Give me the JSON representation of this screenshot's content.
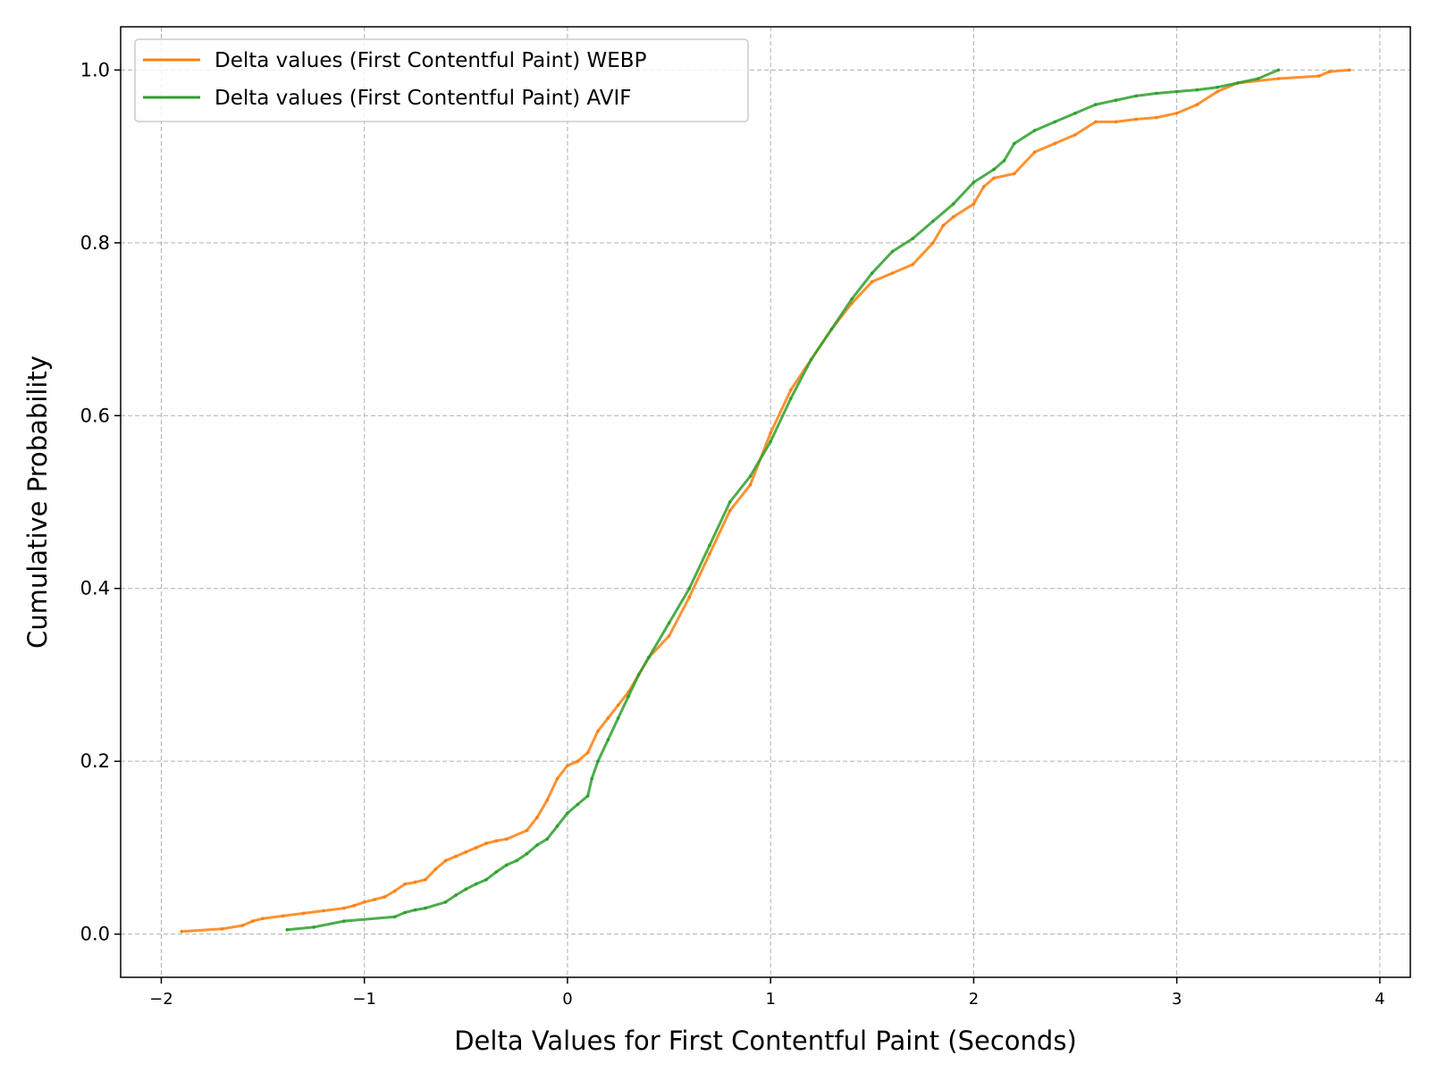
{
  "chart_data": {
    "type": "line",
    "title": "",
    "xlabel": "Delta Values for First Contentful Paint (Seconds)",
    "ylabel": "Cumulative Probability",
    "xlim": [
      -2.2,
      4.15
    ],
    "ylim": [
      -0.05,
      1.05
    ],
    "xticks": [
      -2,
      -1,
      0,
      1,
      2,
      3,
      4
    ],
    "xtick_labels": [
      "−2",
      "−1",
      "0",
      "1",
      "2",
      "3",
      "4"
    ],
    "yticks": [
      0.0,
      0.2,
      0.4,
      0.6,
      0.8,
      1.0
    ],
    "ytick_labels": [
      "0.0",
      "0.2",
      "0.4",
      "0.6",
      "0.8",
      "1.0"
    ],
    "grid": true,
    "legend_position": "top-left",
    "series": [
      {
        "name": "Delta values (First Contentful Paint) WEBP",
        "color": "#ff7f0e",
        "x": [
          -1.9,
          -1.7,
          -1.6,
          -1.55,
          -1.5,
          -1.4,
          -1.3,
          -1.2,
          -1.1,
          -1.05,
          -1.0,
          -0.95,
          -0.9,
          -0.85,
          -0.8,
          -0.75,
          -0.7,
          -0.65,
          -0.6,
          -0.55,
          -0.5,
          -0.45,
          -0.4,
          -0.35,
          -0.3,
          -0.2,
          -0.15,
          -0.1,
          -0.05,
          0.0,
          0.05,
          0.1,
          0.15,
          0.2,
          0.25,
          0.3,
          0.35,
          0.4,
          0.5,
          0.6,
          0.7,
          0.8,
          0.9,
          1.0,
          1.1,
          1.2,
          1.3,
          1.4,
          1.5,
          1.6,
          1.7,
          1.8,
          1.85,
          1.9,
          2.0,
          2.05,
          2.1,
          2.2,
          2.3,
          2.4,
          2.5,
          2.6,
          2.7,
          2.8,
          2.9,
          3.0,
          3.1,
          3.2,
          3.3,
          3.5,
          3.7,
          3.75,
          3.85
        ],
        "y": [
          0.003,
          0.006,
          0.01,
          0.015,
          0.018,
          0.021,
          0.024,
          0.027,
          0.03,
          0.033,
          0.037,
          0.04,
          0.043,
          0.05,
          0.058,
          0.06,
          0.063,
          0.075,
          0.085,
          0.09,
          0.095,
          0.1,
          0.105,
          0.108,
          0.11,
          0.12,
          0.135,
          0.155,
          0.18,
          0.195,
          0.2,
          0.21,
          0.235,
          0.25,
          0.265,
          0.28,
          0.3,
          0.32,
          0.345,
          0.39,
          0.44,
          0.49,
          0.52,
          0.58,
          0.63,
          0.665,
          0.7,
          0.73,
          0.755,
          0.765,
          0.775,
          0.8,
          0.82,
          0.83,
          0.845,
          0.865,
          0.875,
          0.88,
          0.905,
          0.915,
          0.925,
          0.94,
          0.94,
          0.943,
          0.945,
          0.95,
          0.96,
          0.975,
          0.985,
          0.99,
          0.993,
          0.998,
          1.0
        ]
      },
      {
        "name": "Delta values (First Contentful Paint) AVIF",
        "color": "#2ca02c",
        "x": [
          -1.38,
          -1.25,
          -1.1,
          -0.85,
          -0.8,
          -0.75,
          -0.7,
          -0.6,
          -0.55,
          -0.5,
          -0.45,
          -0.4,
          -0.35,
          -0.3,
          -0.25,
          -0.2,
          -0.15,
          -0.1,
          -0.05,
          0.0,
          0.05,
          0.1,
          0.12,
          0.15,
          0.2,
          0.25,
          0.3,
          0.35,
          0.4,
          0.5,
          0.6,
          0.7,
          0.8,
          0.9,
          1.0,
          1.1,
          1.2,
          1.3,
          1.4,
          1.5,
          1.6,
          1.7,
          1.8,
          1.9,
          2.0,
          2.1,
          2.15,
          2.2,
          2.3,
          2.4,
          2.5,
          2.6,
          2.7,
          2.8,
          2.9,
          3.0,
          3.1,
          3.2,
          3.3,
          3.4,
          3.5
        ],
        "y": [
          0.005,
          0.008,
          0.015,
          0.02,
          0.025,
          0.028,
          0.03,
          0.037,
          0.045,
          0.052,
          0.058,
          0.063,
          0.072,
          0.08,
          0.085,
          0.093,
          0.103,
          0.11,
          0.125,
          0.14,
          0.15,
          0.16,
          0.18,
          0.2,
          0.225,
          0.25,
          0.275,
          0.3,
          0.32,
          0.36,
          0.4,
          0.45,
          0.5,
          0.53,
          0.57,
          0.62,
          0.665,
          0.7,
          0.735,
          0.765,
          0.79,
          0.805,
          0.825,
          0.845,
          0.87,
          0.885,
          0.895,
          0.915,
          0.93,
          0.94,
          0.95,
          0.96,
          0.965,
          0.97,
          0.973,
          0.975,
          0.977,
          0.98,
          0.985,
          0.99,
          1.0
        ]
      }
    ]
  }
}
